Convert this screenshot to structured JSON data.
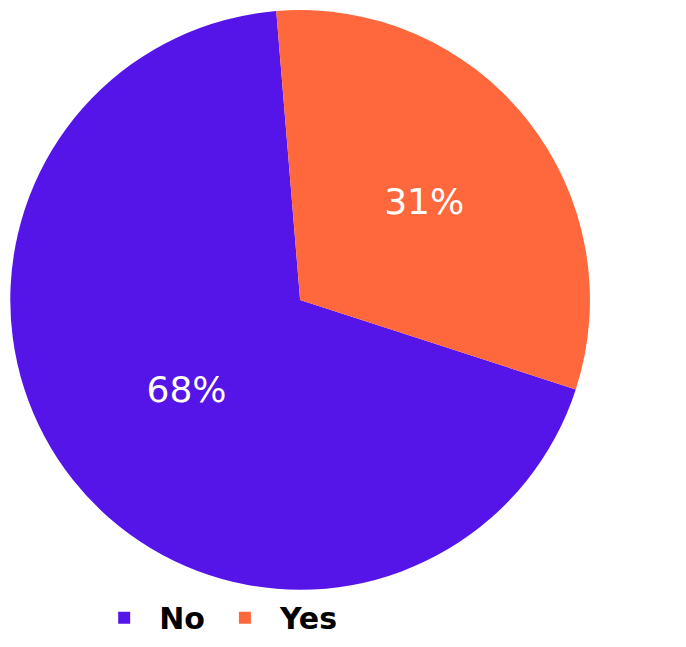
{
  "chart_data": {
    "type": "pie",
    "categories": [
      "No",
      "Yes"
    ],
    "values": [
      68,
      31
    ],
    "value_labels": [
      "68%",
      "31%"
    ],
    "colors": [
      "#5514e8",
      "#ff673d"
    ],
    "data_labels": true,
    "legend": "bottom"
  }
}
